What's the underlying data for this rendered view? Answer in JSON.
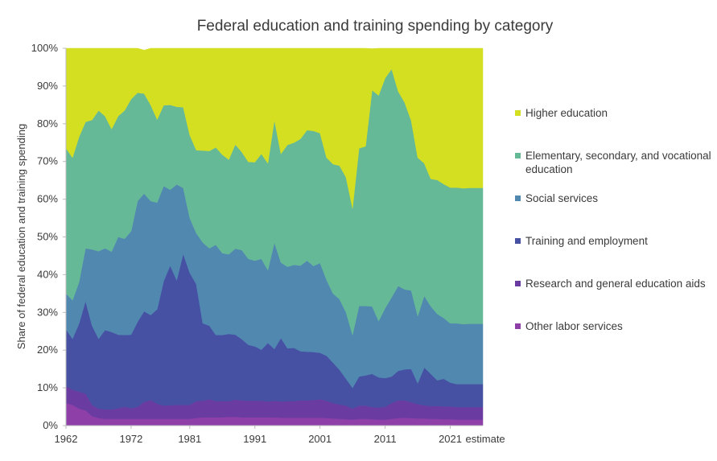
{
  "chart_data": {
    "type": "area",
    "stacked": true,
    "normalized": true,
    "title": "Federal education and training spending by category",
    "xlabel": "",
    "ylabel": "Share of federal education and training spending",
    "xlim": [
      1962,
      2026
    ],
    "ylim": [
      0,
      100
    ],
    "x_ticks": [
      {
        "value": 1962,
        "label": "1962"
      },
      {
        "value": 1972,
        "label": "1972"
      },
      {
        "value": 1981,
        "label": "1981"
      },
      {
        "value": 1991,
        "label": "1991"
      },
      {
        "value": 2001,
        "label": "2001"
      },
      {
        "value": 2011,
        "label": "2011"
      },
      {
        "value": 2021,
        "label": "2021"
      }
    ],
    "x_annotation": "estimate",
    "y_ticks": [
      0,
      10,
      20,
      30,
      40,
      50,
      60,
      70,
      80,
      90,
      100
    ],
    "y_tick_suffix": "%",
    "grid": false,
    "legend_position": "right",
    "x": [
      1962,
      1963,
      1964,
      1965,
      1966,
      1967,
      1968,
      1969,
      1970,
      1971,
      1972,
      1973,
      1974,
      1975,
      1976,
      1977,
      1978,
      1979,
      1980,
      1981,
      1982,
      1983,
      1984,
      1985,
      1986,
      1987,
      1988,
      1989,
      1990,
      1991,
      1992,
      1993,
      1994,
      1995,
      1996,
      1997,
      1998,
      1999,
      2000,
      2001,
      2002,
      2003,
      2004,
      2005,
      2006,
      2007,
      2008,
      2009,
      2010,
      2011,
      2012,
      2013,
      2014,
      2015,
      2016,
      2017,
      2018,
      2019,
      2020,
      2021,
      2022,
      2023,
      2024,
      2025,
      2026
    ],
    "series": [
      {
        "name": "Other labor services",
        "color": "#8e3fa8",
        "values": [
          6,
          5.5,
          4.5,
          4,
          2.5,
          2,
          1.8,
          1.8,
          1.8,
          1.8,
          1.8,
          1.8,
          1.8,
          1.8,
          1.8,
          1.8,
          1.8,
          1.8,
          1.8,
          1.8,
          2,
          2.2,
          2.2,
          2.2,
          2.2,
          2.3,
          2.3,
          2.2,
          2.2,
          2.2,
          2.2,
          2.2,
          2.2,
          2.1,
          2.1,
          2.1,
          2.1,
          2.1,
          2.1,
          2.1,
          2,
          1.9,
          1.8,
          1.7,
          1.6,
          1.8,
          1.8,
          1.7,
          1.6,
          1.6,
          1.8,
          2,
          2.1,
          2,
          1.9,
          1.9,
          1.8,
          1.8,
          1.7,
          1.7,
          1.6,
          1.6,
          1.6,
          1.6,
          1.6
        ]
      },
      {
        "name": "Research and general education aids",
        "color": "#6a3ca2",
        "values": [
          4.5,
          4,
          4.5,
          4.5,
          3,
          2.5,
          2.5,
          2.5,
          2.8,
          3.2,
          2.8,
          3.2,
          4.5,
          5,
          4,
          3.5,
          3.6,
          3.7,
          3.7,
          3.7,
          4.5,
          4.4,
          4.8,
          4.3,
          4.3,
          4.2,
          4.6,
          4.5,
          4.4,
          4.4,
          4.4,
          4.2,
          4.4,
          4.3,
          4.4,
          4.4,
          4.6,
          4.6,
          4.7,
          4.9,
          4.6,
          4.1,
          3.8,
          3.6,
          2.9,
          3.5,
          3.5,
          3.2,
          3.2,
          3.4,
          4.2,
          4.7,
          4.6,
          4.2,
          3.8,
          3.5,
          3.4,
          3.4,
          3.4,
          3.4,
          3.3,
          3.3,
          3.3,
          3.3,
          3.3
        ]
      },
      {
        "name": "Training and employment",
        "color": "#4651a4",
        "values": [
          15,
          13.5,
          18,
          24.5,
          21,
          18.5,
          21,
          20.5,
          19.5,
          19,
          19.5,
          22.5,
          24,
          22.5,
          25,
          33,
          37,
          33,
          40,
          35,
          31,
          20.5,
          19.5,
          17.5,
          17.5,
          17.8,
          17.2,
          16.2,
          14.8,
          14.4,
          13.5,
          15.5,
          13.7,
          16.8,
          14,
          14.1,
          13,
          12.9,
          12.7,
          12.3,
          11.9,
          10.7,
          9.2,
          7.1,
          5.5,
          7.7,
          8,
          8.8,
          8,
          7.6,
          7,
          7.8,
          8.2,
          8.8,
          5.5,
          10,
          8.5,
          6.8,
          7.3,
          6.3,
          6.1,
          6.1,
          6.1,
          6.1,
          6.1
        ]
      },
      {
        "name": "Social services",
        "color": "#5188b0",
        "values": [
          9.5,
          10.2,
          11,
          14,
          20.2,
          23.2,
          21.7,
          21.3,
          25.9,
          25.5,
          27.4,
          32,
          31.2,
          30.2,
          28.3,
          25.2,
          20.1,
          25.4,
          17.5,
          14.5,
          13.5,
          21.4,
          20.5,
          23.9,
          21.7,
          21.1,
          22.8,
          23.6,
          22.8,
          22.7,
          24.1,
          19.3,
          28.2,
          20,
          21.6,
          22,
          22.7,
          24.1,
          22.8,
          23.8,
          20.1,
          18.3,
          18.7,
          17.6,
          14,
          18.7,
          18.4,
          17.9,
          14.9,
          18.5,
          21,
          22.5,
          21.2,
          20.8,
          17.8,
          19,
          17.9,
          17.6,
          16.1,
          15.7,
          16.1,
          15.9,
          16,
          16,
          16
        ]
      },
      {
        "name": "Elementary, secondary, and vocational education",
        "color": "#66b996",
        "values": [
          38.5,
          37.8,
          38.5,
          33.5,
          34.3,
          37.3,
          35,
          32.5,
          32,
          34,
          35,
          28.7,
          26.5,
          25.5,
          22,
          21.4,
          22.5,
          20.6,
          21.4,
          22,
          22,
          24.4,
          25.8,
          25.8,
          26.1,
          25.1,
          27.6,
          26,
          25.7,
          26.1,
          27.8,
          28.3,
          32.5,
          28.8,
          32.3,
          32.4,
          33.6,
          34.6,
          35.8,
          34.4,
          32.4,
          34.3,
          35.4,
          35.8,
          33.6,
          41.8,
          42.3,
          57.3,
          59.8,
          61,
          60.5,
          51.6,
          49.5,
          45,
          42,
          35.1,
          33.8,
          35.5,
          35.5,
          36,
          36,
          36,
          36,
          36,
          36
        ]
      },
      {
        "name": "Higher education",
        "color": "#d5df22",
        "values": [
          26.5,
          29,
          23.5,
          19.5,
          19,
          16.5,
          18,
          21.4,
          18,
          16.5,
          13.5,
          11.8,
          11.5,
          15,
          18.9,
          15.1,
          15,
          15.5,
          15.6,
          23,
          27,
          27.1,
          27.2,
          26.3,
          28.2,
          29.5,
          25.5,
          27.5,
          30.1,
          30.2,
          28,
          30.5,
          19,
          28,
          25.6,
          25,
          24,
          21.7,
          21.9,
          22.5,
          29,
          30.7,
          31.1,
          34.2,
          42.4,
          26.5,
          26,
          11,
          12.5,
          7.9,
          5.5,
          11.4,
          14.4,
          19.2,
          29,
          30.5,
          34.6,
          34.9,
          36,
          36.9,
          36.9,
          37.1,
          37,
          37,
          37
        ]
      }
    ]
  }
}
